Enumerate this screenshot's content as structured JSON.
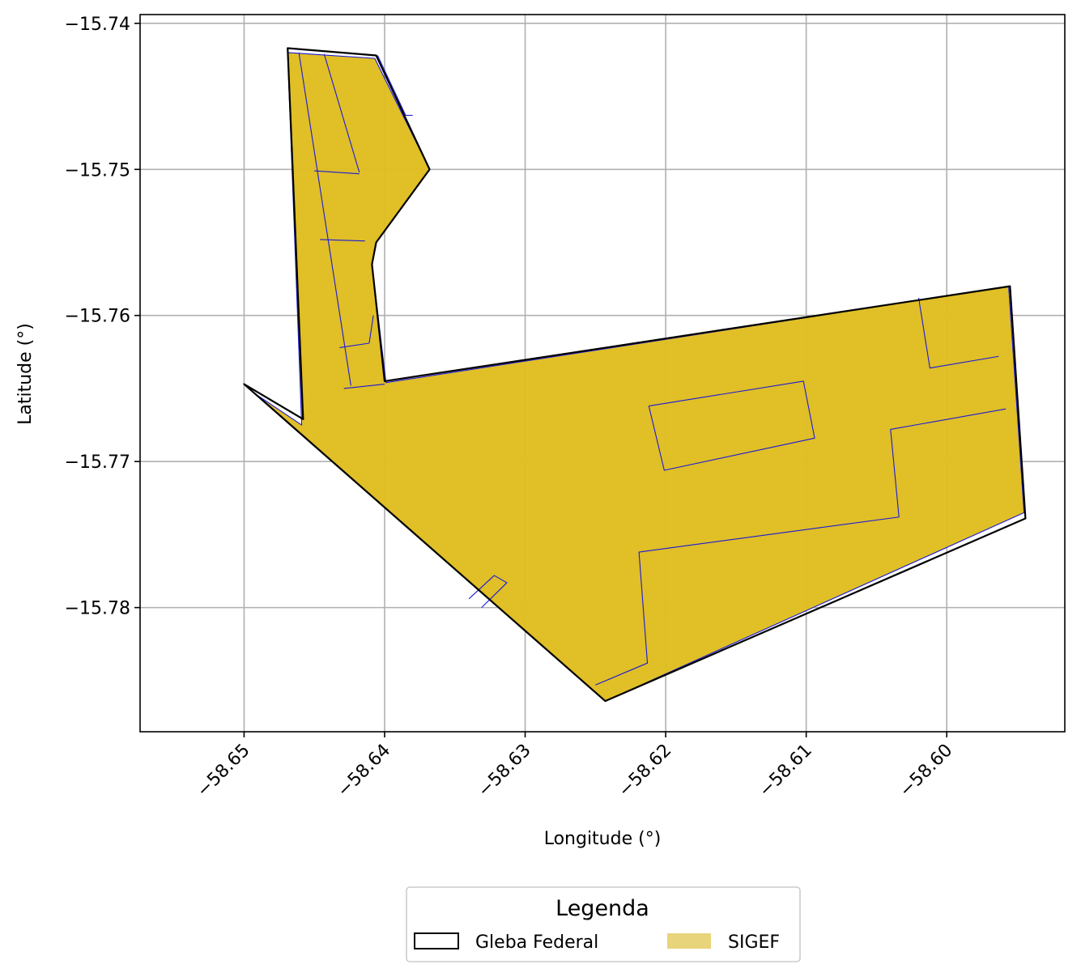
{
  "chart_data": {
    "type": "map",
    "xlabel": "Longitude (°)",
    "ylabel": "Latitude (°)",
    "xlim": [
      -58.6574,
      -58.5916
    ],
    "ylim": [
      -15.7885,
      -15.7394
    ],
    "grid": true,
    "x_ticks": [
      {
        "value": -58.65,
        "label": "−58.65"
      },
      {
        "value": -58.64,
        "label": "−58.64"
      },
      {
        "value": -58.63,
        "label": "−58.63"
      },
      {
        "value": -58.62,
        "label": "−58.62"
      },
      {
        "value": -58.61,
        "label": "−58.61"
      },
      {
        "value": -58.6,
        "label": "−58.60"
      }
    ],
    "y_ticks": [
      {
        "value": -15.74,
        "label": "−15.74"
      },
      {
        "value": -15.75,
        "label": "−15.75"
      },
      {
        "value": -15.76,
        "label": "−15.76"
      },
      {
        "value": -15.77,
        "label": "−15.77"
      },
      {
        "value": -15.78,
        "label": "−15.78"
      }
    ],
    "legend": {
      "title": "Legenda",
      "placement": "bottom-center",
      "entries": [
        {
          "label": "Gleba Federal",
          "style": "outline",
          "color": "#000000"
        },
        {
          "label": "SIGEF",
          "style": "fill",
          "color": "#e8d47a"
        }
      ]
    },
    "layers": {
      "gleba_federal": {
        "name": "Gleba Federal",
        "stroke": "#000000",
        "fill": "none",
        "polygon": [
          [
            -58.6469,
            -15.7417
          ],
          [
            -58.6406,
            -15.7422
          ],
          [
            -58.6368,
            -15.75
          ],
          [
            -58.6406,
            -15.755
          ],
          [
            -58.6409,
            -15.7565
          ],
          [
            -58.64,
            -15.7645
          ],
          [
            -58.5955,
            -15.758
          ],
          [
            -58.5944,
            -15.7739
          ],
          [
            -58.6243,
            -15.7864
          ],
          [
            -58.65,
            -15.7647
          ],
          [
            -58.6458,
            -15.7671
          ]
        ]
      },
      "sigef": {
        "name": "SIGEF",
        "fill": "#dfbd20",
        "fill_opacity": 0.97,
        "stroke": "#1a1ad9",
        "parcels": [
          [
            [
              -58.6469,
              -15.742
            ],
            [
              -58.6407,
              -15.7424
            ],
            [
              -58.6368,
              -15.75
            ],
            [
              -58.6406,
              -15.755
            ],
            [
              -58.6409,
              -15.7565
            ],
            [
              -58.6399,
              -15.7646
            ],
            [
              -58.5956,
              -15.758
            ],
            [
              -58.5945,
              -15.7735
            ],
            [
              -58.6243,
              -15.7864
            ],
            [
              -58.649,
              -15.7655
            ],
            [
              -58.6459,
              -15.7675
            ]
          ]
        ],
        "internal_lines": [
          [
            [
              -58.6461,
              -15.742
            ],
            [
              -58.6424,
              -15.7648
            ]
          ],
          [
            [
              -58.6443,
              -15.7421
            ],
            [
              -58.6418,
              -15.7502
            ]
          ],
          [
            [
              -58.645,
              -15.7501
            ],
            [
              -58.6418,
              -15.7503
            ]
          ],
          [
            [
              -58.6446,
              -15.7548
            ],
            [
              -58.6414,
              -15.7549
            ]
          ],
          [
            [
              -58.6405,
              -15.7422
            ],
            [
              -58.6385,
              -15.7463
            ]
          ],
          [
            [
              -58.6385,
              -15.7463
            ],
            [
              -58.638,
              -15.7463
            ]
          ],
          [
            [
              -58.6432,
              -15.7622
            ],
            [
              -58.6411,
              -15.7619
            ]
          ],
          [
            [
              -58.6411,
              -15.7619
            ],
            [
              -58.6408,
              -15.76
            ]
          ],
          [
            [
              -58.6429,
              -15.765
            ],
            [
              -58.64,
              -15.7647
            ]
          ],
          [
            [
              -58.6212,
              -15.7662
            ],
            [
              -58.6102,
              -15.7645
            ],
            [
              -58.6094,
              -15.7684
            ],
            [
              -58.6201,
              -15.7706
            ],
            [
              -58.6212,
              -15.7662
            ]
          ],
          [
            [
              -58.602,
              -15.7588
            ],
            [
              -58.6012,
              -15.7636
            ],
            [
              -58.5963,
              -15.7628
            ]
          ],
          [
            [
              -58.5958,
              -15.7664
            ],
            [
              -58.604,
              -15.7678
            ],
            [
              -58.6034,
              -15.7738
            ],
            [
              -58.6219,
              -15.7762
            ],
            [
              -58.6213,
              -15.7838
            ],
            [
              -58.625,
              -15.7853
            ]
          ],
          [
            [
              -58.634,
              -15.7794
            ],
            [
              -58.6322,
              -15.7778
            ],
            [
              -58.6313,
              -15.7783
            ],
            [
              -58.6331,
              -15.78
            ]
          ]
        ]
      }
    }
  }
}
